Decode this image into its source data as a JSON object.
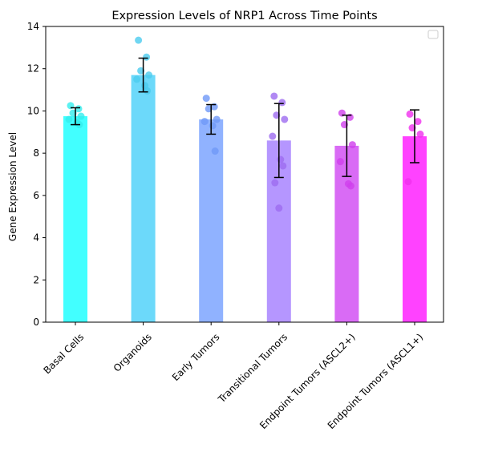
{
  "chart_data": {
    "type": "bar",
    "title": "Expression Levels of NRP1 Across Time Points",
    "xlabel": "",
    "ylabel": "Gene Expression Level",
    "ylim": [
      0,
      14
    ],
    "yticks": [
      0,
      2,
      4,
      6,
      8,
      10,
      12,
      14
    ],
    "grid": false,
    "legend": "top-right, empty",
    "categories": [
      "Basal Cells",
      "Organoids",
      "Early Tumors",
      "Transitional Tumors",
      "Endpoint Tumors (ASCL2+)",
      "Endpoint Tumors (ASCL1+)"
    ],
    "values": [
      9.75,
      11.7,
      9.6,
      8.6,
      8.35,
      8.8
    ],
    "error": [
      0.4,
      0.8,
      0.7,
      1.75,
      1.45,
      1.25
    ],
    "points": [
      [
        10.25,
        10.1,
        9.9,
        9.75,
        9.6,
        9.45,
        9.35
      ],
      [
        13.35,
        12.55,
        11.9,
        11.7,
        11.5,
        11.2,
        10.95
      ],
      [
        10.6,
        10.2,
        10.1,
        9.6,
        9.5,
        9.3,
        8.1
      ],
      [
        10.7,
        10.4,
        9.8,
        9.6,
        8.8,
        7.7,
        7.4,
        6.6,
        5.4
      ],
      [
        9.9,
        9.7,
        9.35,
        8.4,
        7.6,
        6.55,
        6.45
      ],
      [
        9.85,
        9.5,
        9.2,
        8.9,
        6.65
      ]
    ],
    "colors": [
      "#42ffff",
      "#6cd9fa",
      "#90b2ff",
      "#b596ff",
      "#d96bf5",
      "#ff42ff"
    ],
    "point_colors": [
      "#33eeee",
      "#4cccef",
      "#6f98f7",
      "#9d6cf0",
      "#d040ec",
      "#f030ee"
    ]
  }
}
